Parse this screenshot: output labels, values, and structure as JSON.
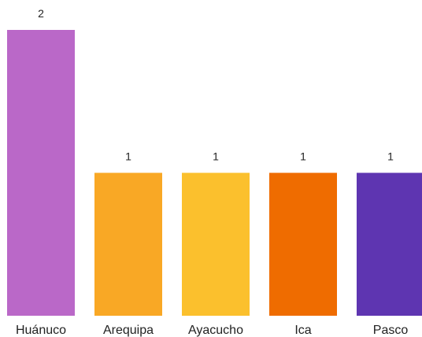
{
  "chart_data": {
    "type": "bar",
    "categories": [
      "Huánuco",
      "Arequipa",
      "Ayacucho",
      "Ica",
      "Pasco"
    ],
    "values": [
      2,
      1,
      1,
      1,
      1
    ],
    "value_labels": [
      "2",
      "1",
      "1",
      "1",
      "1"
    ],
    "colors": [
      "#ba68c8",
      "#f9a825",
      "#fbc02d",
      "#ef6c00",
      "#5e35b1"
    ],
    "ylim": [
      0,
      2
    ],
    "grid": false,
    "legend": "none"
  }
}
